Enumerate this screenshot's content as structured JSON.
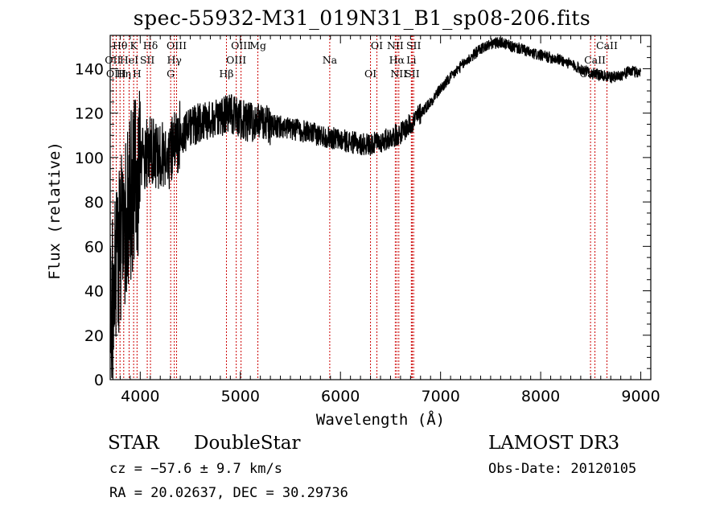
{
  "chart_data": {
    "type": "line",
    "title": "spec-55932-M31_019N31_B1_sp08-206.fits",
    "xlabel": "Wavelength (Å)",
    "ylabel": "Flux (relative)",
    "xlim": [
      3700,
      9100
    ],
    "ylim": [
      0,
      155
    ],
    "xticks": [
      4000,
      5000,
      6000,
      7000,
      8000,
      9000
    ],
    "yticks": [
      0,
      20,
      40,
      60,
      80,
      100,
      120,
      140
    ],
    "grid": false,
    "series": [
      {
        "name": "spectrum",
        "x": [
          3700,
          3750,
          3800,
          3850,
          3900,
          3950,
          4000,
          4050,
          4100,
          4150,
          4200,
          4250,
          4300,
          4350,
          4400,
          4500,
          4600,
          4700,
          4800,
          4900,
          5000,
          5100,
          5200,
          5300,
          5400,
          5500,
          5600,
          5700,
          5800,
          5900,
          6000,
          6100,
          6200,
          6300,
          6400,
          6500,
          6600,
          6700,
          6800,
          6900,
          7000,
          7100,
          7200,
          7300,
          7400,
          7500,
          7600,
          7700,
          7800,
          7900,
          8000,
          8100,
          8200,
          8300,
          8400,
          8500,
          8600,
          8700,
          8800,
          8900,
          9000
        ],
        "values": [
          30,
          45,
          62,
          70,
          82,
          90,
          95,
          100,
          104,
          100,
          102,
          98,
          100,
          108,
          110,
          113,
          116,
          117,
          118,
          120,
          117,
          116,
          115,
          114,
          114,
          113,
          112,
          111,
          110,
          109,
          108,
          107,
          106,
          106,
          107,
          109,
          111,
          115,
          120,
          125,
          131,
          136,
          141,
          145,
          149,
          151,
          152,
          150,
          149,
          147,
          146,
          145,
          144,
          142,
          140,
          138,
          137,
          136,
          137,
          139,
          138
        ]
      }
    ],
    "annotations": [
      {
        "label": "Hθ",
        "x": 3798
      },
      {
        "label": "OII",
        "x": 3727
      },
      {
        "label": "OIII",
        "x": 3760
      },
      {
        "label": "K",
        "x": 3934
      },
      {
        "label": "HeI",
        "x": 3889
      },
      {
        "label": "Hη",
        "x": 3835
      },
      {
        "label": "Hδ",
        "x": 4102
      },
      {
        "label": "SII",
        "x": 4070
      },
      {
        "label": "H",
        "x": 3968
      },
      {
        "label": "OIII",
        "x": 4363
      },
      {
        "label": "Hγ",
        "x": 4340
      },
      {
        "label": "G",
        "x": 4304
      },
      {
        "label": "OIII",
        "x": 5007
      },
      {
        "label": "OIII",
        "x": 4959
      },
      {
        "label": "Hβ",
        "x": 4861
      },
      {
        "label": "Mg",
        "x": 5175
      },
      {
        "label": "Na",
        "x": 5893
      },
      {
        "label": "OI",
        "x": 6300
      },
      {
        "label": "OI",
        "x": 6364
      },
      {
        "label": "Hα",
        "x": 6563
      },
      {
        "label": "SII",
        "x": 6717
      },
      {
        "label": "NII",
        "x": 6548
      },
      {
        "label": "Li",
        "x": 6708
      },
      {
        "label": "NII",
        "x": 6583
      },
      {
        "label": "SII",
        "x": 6731
      },
      {
        "label": "CaII",
        "x": 8542
      },
      {
        "label": "CaII",
        "x": 8498
      },
      {
        "label": "CaII",
        "x": 8662
      }
    ]
  },
  "info": {
    "class": "STAR",
    "subclass": "DoubleStar",
    "survey": "LAMOST DR3",
    "cz": "cz = −57.6 ± 9.7 km/s",
    "obs_date": "Obs-Date: 20120105",
    "radec": "RA =  20.02637, DEC =  30.29736"
  },
  "colors": {
    "axis": "#000000",
    "spectrum": "#000000",
    "line_marker": "#cc0000",
    "background": "#ffffff"
  }
}
